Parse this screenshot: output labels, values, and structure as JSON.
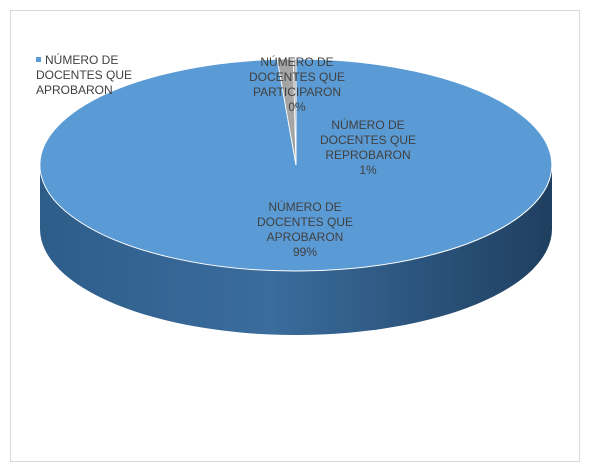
{
  "chart_data": {
    "type": "pie",
    "style": "3d",
    "title": "",
    "slices": [
      {
        "name": "NÚMERO DE DOCENTES QUE PARTICIPARON",
        "value": 0,
        "label_lines": [
          "NÚMERO DE",
          "DOCENTES QUE",
          "PARTICIPARON"
        ],
        "percent": "0%",
        "color": "#a5a5a5"
      },
      {
        "name": "NÚMERO DE DOCENTES QUE REPROBARON",
        "value": 1,
        "label_lines": [
          "NÚMERO DE",
          "DOCENTES QUE",
          "REPROBARON"
        ],
        "percent": "1%",
        "color": "#a5a5a5"
      },
      {
        "name": "NÚMERO DE DOCENTES QUE APROBARON",
        "value": 99,
        "label_lines": [
          "NÚMERO DE",
          "DOCENTES QUE",
          "APROBARON"
        ],
        "percent": "99%",
        "color": "#5b9bd5"
      }
    ],
    "legend": {
      "position": "top-left",
      "entries": [
        {
          "lines": [
            "NÚMERO DE",
            "DOCENTES QUE",
            "APROBARON"
          ],
          "color": "#5b9bd5"
        }
      ]
    }
  }
}
